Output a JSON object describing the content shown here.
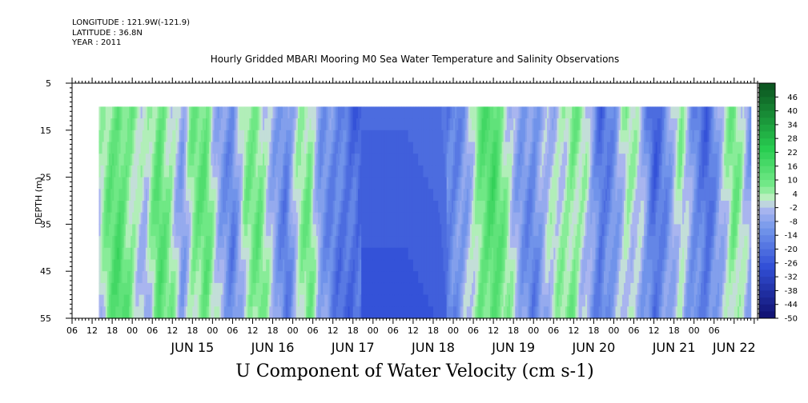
{
  "header": {
    "lines": [
      "LONGITUDE : 121.9W(-121.9)",
      "LATITUDE : 36.8N",
      "YEAR : 2011"
    ],
    "title": "Hourly Gridded MBARI Mooring M0 Sea Water Temperature and Salinity Observations"
  },
  "chart_data": {
    "type": "heatmap",
    "title": "U Component of Water Velocity (cm s-1)",
    "xlabel": "",
    "ylabel": "DEPTH (m)",
    "ylim": [
      55,
      5
    ],
    "y_ticks": [
      5,
      15,
      25,
      35,
      45,
      55
    ],
    "hour_ticks": [
      "06",
      "12",
      "18",
      "00",
      "06",
      "12",
      "18",
      "00",
      "06",
      "12",
      "18",
      "00",
      "06",
      "12",
      "18",
      "00",
      "06",
      "12",
      "18",
      "00",
      "06",
      "12",
      "18",
      "00",
      "06",
      "12",
      "18",
      "00",
      "06",
      "12",
      "18",
      "00",
      "06"
    ],
    "day_labels": [
      {
        "label": "JUN 15",
        "hour": 36
      },
      {
        "label": "JUN 16",
        "hour": 60
      },
      {
        "label": "JUN 17",
        "hour": 84
      },
      {
        "label": "JUN 18",
        "hour": 108
      },
      {
        "label": "JUN 19",
        "hour": 132
      },
      {
        "label": "JUN 20",
        "hour": 156
      },
      {
        "label": "JUN 21",
        "hour": 180
      },
      {
        "label": "JUN 22",
        "hour": 198
      }
    ],
    "x_range_hours": [
      0,
      205
    ],
    "data_x_range_hours": [
      8,
      203
    ],
    "data_depth_range": [
      10,
      55
    ],
    "colorbar": {
      "ticks": [
        "46",
        "40",
        "34",
        "28",
        "22",
        "16",
        "10",
        "4",
        "-2",
        "-8",
        "-14",
        "-20",
        "-26",
        "-32",
        "-38",
        "-44",
        "-50"
      ],
      "min": -50,
      "max": 52,
      "step": 3
    },
    "series": [
      {
        "name": "u_velocity",
        "time_hours": [
          8,
          11,
          14,
          18,
          22,
          26,
          30,
          33,
          36,
          40,
          44,
          48,
          52,
          56,
          60,
          64,
          68,
          71,
          74,
          78,
          82,
          86,
          88,
          92,
          100,
          110,
          115,
          118,
          122,
          126,
          130,
          134,
          138,
          142,
          146,
          150,
          154,
          158,
          162,
          166,
          170,
          174,
          178,
          182,
          186,
          190,
          194,
          198,
          201,
          203
        ],
        "values": [
          -2,
          8,
          14,
          6,
          -4,
          12,
          4,
          -8,
          6,
          10,
          -6,
          -14,
          4,
          8,
          -4,
          -16,
          2,
          8,
          -8,
          -14,
          -20,
          -22,
          -22,
          -22,
          -22,
          -20,
          -14,
          -6,
          10,
          14,
          4,
          -8,
          -14,
          -4,
          2,
          8,
          -2,
          -20,
          -10,
          4,
          -4,
          -22,
          -10,
          4,
          -14,
          -20,
          -4,
          8,
          -2,
          -10
        ]
      }
    ]
  }
}
